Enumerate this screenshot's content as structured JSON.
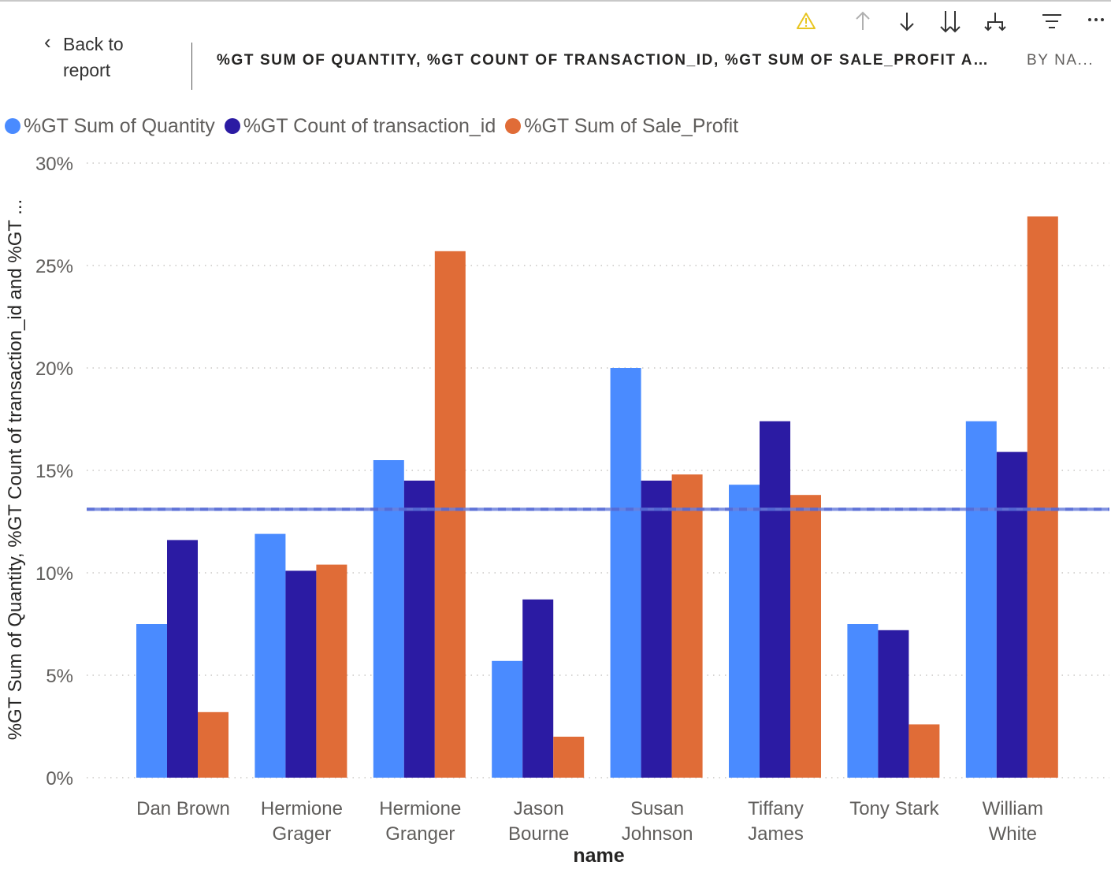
{
  "header": {
    "back_label": "Back to report",
    "title": "%GT SUM OF QUANTITY, %GT COUNT OF TRANSACTION_ID, %GT SUM OF SALE_PROFIT AN...",
    "subtitle": "BY NA..."
  },
  "toolbar": {
    "icons": [
      "warning-icon",
      "drill-up-icon",
      "drill-down-icon",
      "expand-all-down-icon",
      "expand-hierarchy-icon",
      "filter-icon",
      "more-options-icon"
    ],
    "warning_color": "#e8c520"
  },
  "chart_data": {
    "type": "bar",
    "categories": [
      [
        "Dan Brown"
      ],
      [
        "Hermione",
        "Grager"
      ],
      [
        "Hermione",
        "Granger"
      ],
      [
        "Jason",
        "Bourne"
      ],
      [
        "Susan",
        "Johnson"
      ],
      [
        "Tiffany",
        "James"
      ],
      [
        "Tony Stark"
      ],
      [
        "William",
        "White"
      ]
    ],
    "series": [
      {
        "name": "%GT Sum of Quantity",
        "color": "#4a8bff",
        "values": [
          7.5,
          11.9,
          15.5,
          5.7,
          20.0,
          14.3,
          7.5,
          17.4
        ]
      },
      {
        "name": "%GT Count of transaction_id",
        "color": "#2b1ba3",
        "values": [
          11.6,
          10.1,
          14.5,
          8.7,
          14.5,
          17.4,
          7.2,
          15.9
        ]
      },
      {
        "name": "%GT Sum of Sale_Profit",
        "color": "#e06c37",
        "values": [
          3.2,
          10.4,
          25.7,
          2.0,
          14.8,
          13.8,
          2.6,
          27.4
        ]
      }
    ],
    "reference_line": {
      "value": 13.1,
      "color": "#6a7fdc"
    },
    "ylim": [
      0,
      30
    ],
    "yticks": [
      0,
      5,
      10,
      15,
      20,
      25,
      30
    ],
    "ytick_suffix": "%",
    "xlabel": "name",
    "ylabel": "%GT Sum of Quantity, %GT Count of transaction_id and %GT ...",
    "legend_position": "top-left",
    "grid": true
  }
}
